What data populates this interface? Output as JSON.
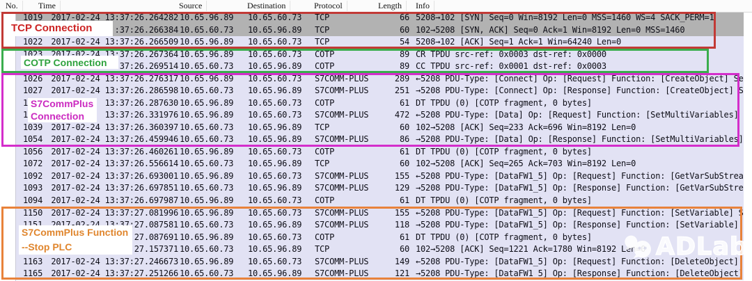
{
  "header": {
    "columns": [
      "No.",
      "Time",
      "Source",
      "Destination",
      "Protocol",
      "Length",
      "Info"
    ]
  },
  "rows": [
    {
      "no": "1019",
      "time": "2017-02-24 13:37:26.264282",
      "source": "10.65.96.89",
      "destination": "10.65.60.73",
      "protocol": "TCP",
      "length": "66",
      "info": "5208→102 [SYN] Seq=0 Win=8192 Len=0 MSS=1460 WS=4 SACK_PERM=1",
      "shade": "gray"
    },
    {
      "no": "",
      "time": ":37:26.266384",
      "source": "10.65.60.73",
      "destination": "10.65.96.89",
      "protocol": "TCP",
      "length": "60",
      "info": "102→5208 [SYN, ACK] Seq=0 Ack=1 Win=8192 Len=0 MSS=1460",
      "shade": "gray"
    },
    {
      "no": "1022",
      "time": "2017-02-24 13:37:26.266509",
      "source": "10.65.96.89",
      "destination": "10.65.60.73",
      "protocol": "TCP",
      "length": "54",
      "info": "5208→102 [ACK] Seq=1 Ack=1 Win=64240 Len=0",
      "shade": "lav"
    },
    {
      "no": "1023",
      "time": "2017-02-24 13:37:26.267364",
      "source": "10.65.96.89",
      "destination": "10.65.60.73",
      "protocol": "COTP",
      "length": "89",
      "info": "CR TPDU src-ref: 0x0003 dst-ref: 0x0000",
      "shade": "lav"
    },
    {
      "no": "1025",
      "time": "2017-02-24 13:37:26.269514",
      "source": "10.65.60.73",
      "destination": "10.65.96.89",
      "protocol": "COTP",
      "length": "89",
      "info": "CC TPDU src-ref: 0x0001 dst-ref: 0x0003",
      "shade": "lav"
    },
    {
      "no": "1026",
      "time": "2017-02-24 13:37:26.276317",
      "source": "10.65.96.89",
      "destination": "10.65.60.73",
      "protocol": "S7COMM-PLUS",
      "length": "289",
      "info": "←5208 PDU-Type: [Connect] Op: [Request] Function: [CreateObject] Se…",
      "shade": "lav"
    },
    {
      "no": "1027",
      "time": "2017-02-24 13:37:26.286598",
      "source": "10.65.60.73",
      "destination": "10.65.96.89",
      "protocol": "S7COMM-PLUS",
      "length": "251",
      "info": "→5208 PDU-Type: [Connect] Op: [Response] Function: [CreateObject] S…",
      "shade": "lav"
    },
    {
      "no": "10",
      "time": "13:37:26.287630",
      "source": "10.65.96.89",
      "destination": "10.65.60.73",
      "protocol": "COTP",
      "length": "61",
      "info": "DT TPDU (0) [COTP fragment, 0 bytes]",
      "shade": "lav"
    },
    {
      "no": "10",
      "time": "13:37:26.331976",
      "source": "10.65.96.89",
      "destination": "10.65.60.73",
      "protocol": "S7COMM-PLUS",
      "length": "472",
      "info": "←5208 PDU-Type: [Data] Op: [Request] Function: [SetMultiVariables] …",
      "shade": "lav"
    },
    {
      "no": "1039",
      "time": "2017-02-24 13:37:26.360397",
      "source": "10.65.60.73",
      "destination": "10.65.96.89",
      "protocol": "TCP",
      "length": "60",
      "info": "102→5208 [ACK] Seq=233 Ack=696 Win=8192 Len=0",
      "shade": "lav"
    },
    {
      "no": "1054",
      "time": "2017-02-24 13:37:26.459946",
      "source": "10.65.60.73",
      "destination": "10.65.96.89",
      "protocol": "S7COMM-PLUS",
      "length": "86",
      "info": "→5208 PDU-Type: [Data] Op: [Response] Function: [SetMultiVariables]…",
      "shade": "lav"
    },
    {
      "no": "1056",
      "time": "2017-02-24 13:37:26.460261",
      "source": "10.65.96.89",
      "destination": "10.65.60.73",
      "protocol": "COTP",
      "length": "61",
      "info": "DT TPDU (0) [COTP fragment, 0 bytes]",
      "shade": "lav"
    },
    {
      "no": "1072",
      "time": "2017-02-24 13:37:26.556614",
      "source": "10.65.60.73",
      "destination": "10.65.96.89",
      "protocol": "TCP",
      "length": "60",
      "info": "102→5208 [ACK] Seq=265 Ack=703 Win=8192 Len=0",
      "shade": "lav"
    },
    {
      "no": "1092",
      "time": "2017-02-24 13:37:26.693001",
      "source": "10.65.96.89",
      "destination": "10.65.60.73",
      "protocol": "S7COMM-PLUS",
      "length": "155",
      "info": "←5208 PDU-Type: [DataFW1_5] Op: [Request] Function: [GetVarSubStrea…",
      "shade": "lav"
    },
    {
      "no": "1093",
      "time": "2017-02-24 13:37:26.697851",
      "source": "10.65.60.73",
      "destination": "10.65.96.89",
      "protocol": "S7COMM-PLUS",
      "length": "129",
      "info": "→5208 PDU-Type: [DataFW1_5] Op: [Response] Function: [GetVarSubStre…",
      "shade": "lav"
    },
    {
      "no": "1094",
      "time": "2017-02-24 13:37:26.697987",
      "source": "10.65.96.89",
      "destination": "10.65.60.73",
      "protocol": "COTP",
      "length": "61",
      "info": "DT TPDU (0) [COTP fragment, 0 bytes]",
      "shade": "lav"
    },
    {
      "no": "1150",
      "time": "2017-02-24 13:37:27.081996",
      "source": "10.65.96.89",
      "destination": "10.65.60.73",
      "protocol": "S7COMM-PLUS",
      "length": "155",
      "info": "←5208 PDU-Type: [DataFW1_5] Op: [Request] Function: [SetVariable] S…",
      "shade": "lav"
    },
    {
      "no": "1151",
      "time": "2017-02-24 13:37:27.087581",
      "source": "10.65.60.73",
      "destination": "10.65.96.89",
      "protocol": "S7COMM-PLUS",
      "length": "118",
      "info": "→5208 PDU-Type: [DataFW1_5] Op: [Response] Function: [SetVariable] …",
      "shade": "lav"
    },
    {
      "no": "",
      "time": "27.087691",
      "source": "10.65.96.89",
      "destination": "10.65.60.73",
      "protocol": "COTP",
      "length": "61",
      "info": "DT TPDU (0) [COTP fragment, 0 bytes]",
      "shade": "lav"
    },
    {
      "no": "",
      "time": "27.157371",
      "source": "10.65.60.73",
      "destination": "10.65.96.89",
      "protocol": "TCP",
      "length": "60",
      "info": "102→5208 [ACK] Seq=1221 Ack=1780 Win=8192 Len=0",
      "shade": "lav"
    },
    {
      "no": "1163",
      "time": "2017-02-24 13:37:27.246673",
      "source": "10.65.96.89",
      "destination": "10.65.60.73",
      "protocol": "S7COMM-PLUS",
      "length": "149",
      "info": "←5208 PDU-Type: [DataFW1_5] Op: [Request] Function: [DeleteObject] …",
      "shade": "lav"
    },
    {
      "no": "1165",
      "time": "2017-02-24 13:37:27.251266",
      "source": "10.65.60.73",
      "destination": "10.65.96.89",
      "protocol": "S7COMM-PLUS",
      "length": "121",
      "info": "→5208 PDU-Type: [DataFW1_5] Op: [Response] Function: [DeleteObject]…",
      "shade": "lav"
    }
  ],
  "annotations": [
    {
      "id": "tcp",
      "label_lines": [
        "TCP Connection"
      ],
      "border_color": "#c23a36",
      "text_color": "#cc2424"
    },
    {
      "id": "cotp",
      "label_lines": [
        "COTP Connection"
      ],
      "border_color": "#3aad4d",
      "text_color": "#2ea23d"
    },
    {
      "id": "s7conn",
      "label_lines": [
        "S7CommPlus",
        "Connection"
      ],
      "border_color": "#d42ecb",
      "text_color": "#cb2ac0"
    },
    {
      "id": "s7func",
      "label_lines": [
        "S7CommPlus Function",
        "--Stop PLC"
      ],
      "border_color": "#e8823a",
      "text_color": "#e0862e"
    }
  ],
  "watermark": {
    "text": "ADLab",
    "icon": "wechat-chat-bubbles"
  }
}
